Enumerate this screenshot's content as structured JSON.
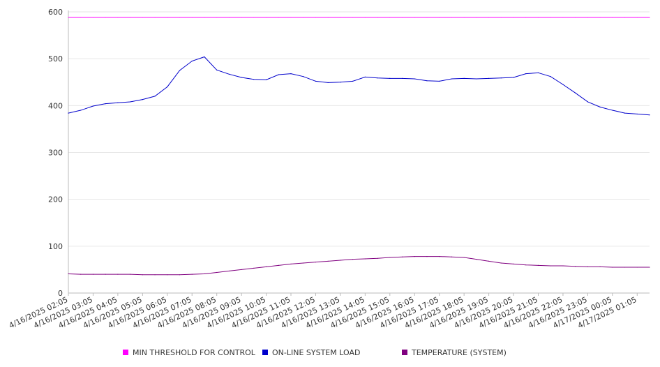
{
  "chart_data": {
    "type": "line",
    "title": "",
    "xlabel": "",
    "ylabel": "",
    "ylim": [
      0,
      600
    ],
    "yticks": [
      0,
      100,
      200,
      300,
      400,
      500,
      600
    ],
    "grid": "horizontal",
    "legend_position": "bottom",
    "x_tick_labels": [
      "4/16/2025 02:05",
      "4/16/2025 03:05",
      "4/16/2025 04:05",
      "4/16/2025 05:05",
      "4/16/2025 06:05",
      "4/16/2025 07:05",
      "4/16/2025 08:05",
      "4/16/2025 09:05",
      "4/16/2025 10:05",
      "4/16/2025 11:05",
      "4/16/2025 12:05",
      "4/16/2025 13:05",
      "4/16/2025 14:05",
      "4/16/2025 15:05",
      "4/16/2025 16:05",
      "4/16/2025 17:05",
      "4/16/2025 18:05",
      "4/16/2025 19:05",
      "4/16/2025 20:05",
      "4/16/2025 21:05",
      "4/16/2025 22:05",
      "4/16/2025 23:05",
      "4/17/2025 00:05",
      "4/17/2025 01:05"
    ],
    "x": [
      "4/16/2025 02:05",
      "4/16/2025 02:35",
      "4/16/2025 03:05",
      "4/16/2025 03:35",
      "4/16/2025 04:05",
      "4/16/2025 04:35",
      "4/16/2025 05:05",
      "4/16/2025 05:35",
      "4/16/2025 06:05",
      "4/16/2025 06:35",
      "4/16/2025 07:05",
      "4/16/2025 07:35",
      "4/16/2025 08:05",
      "4/16/2025 08:35",
      "4/16/2025 09:05",
      "4/16/2025 09:35",
      "4/16/2025 10:05",
      "4/16/2025 10:35",
      "4/16/2025 11:05",
      "4/16/2025 11:35",
      "4/16/2025 12:05",
      "4/16/2025 12:35",
      "4/16/2025 13:05",
      "4/16/2025 13:35",
      "4/16/2025 14:05",
      "4/16/2025 14:35",
      "4/16/2025 15:05",
      "4/16/2025 15:35",
      "4/16/2025 16:05",
      "4/16/2025 16:35",
      "4/16/2025 17:05",
      "4/16/2025 17:35",
      "4/16/2025 18:05",
      "4/16/2025 18:35",
      "4/16/2025 19:05",
      "4/16/2025 19:35",
      "4/16/2025 20:05",
      "4/16/2025 20:35",
      "4/16/2025 21:05",
      "4/16/2025 21:35",
      "4/16/2025 22:05",
      "4/16/2025 22:35",
      "4/16/2025 23:05",
      "4/16/2025 23:35",
      "4/17/2025 00:05",
      "4/17/2025 00:35",
      "4/17/2025 01:05",
      "4/17/2025 01:35"
    ],
    "series": [
      {
        "name": "MIN THRESHOLD FOR CONTROL",
        "color": "#ff00ff",
        "values": [
          588,
          588,
          588,
          588,
          588,
          588,
          588,
          588,
          588,
          588,
          588,
          588,
          588,
          588,
          588,
          588,
          588,
          588,
          588,
          588,
          588,
          588,
          588,
          588,
          588,
          588,
          588,
          588,
          588,
          588,
          588,
          588,
          588,
          588,
          588,
          588,
          588,
          588,
          588,
          588,
          588,
          588,
          588,
          588,
          588,
          588,
          588,
          588
        ]
      },
      {
        "name": "ON-LINE SYSTEM LOAD",
        "color": "#0000cc",
        "values": [
          384,
          390,
          399,
          404,
          406,
          408,
          413,
          420,
          440,
          475,
          495,
          504,
          476,
          467,
          460,
          456,
          455,
          466,
          468,
          462,
          452,
          449,
          450,
          452,
          461,
          459,
          458,
          458,
          457,
          453,
          452,
          457,
          458,
          457,
          458,
          459,
          460,
          468,
          470,
          462,
          445,
          427,
          408,
          397,
          390,
          384,
          382,
          380
        ]
      },
      {
        "name": "TEMPERATURE (SYSTEM)",
        "color": "#800080",
        "values": [
          41,
          40,
          40,
          40,
          40,
          40,
          39,
          39,
          39,
          39,
          40,
          41,
          44,
          47,
          50,
          53,
          56,
          59,
          62,
          64,
          66,
          68,
          70,
          72,
          73,
          74,
          76,
          77,
          78,
          78,
          78,
          77,
          76,
          72,
          68,
          64,
          62,
          60,
          59,
          58,
          58,
          57,
          56,
          56,
          55,
          55,
          55,
          55
        ]
      }
    ]
  }
}
